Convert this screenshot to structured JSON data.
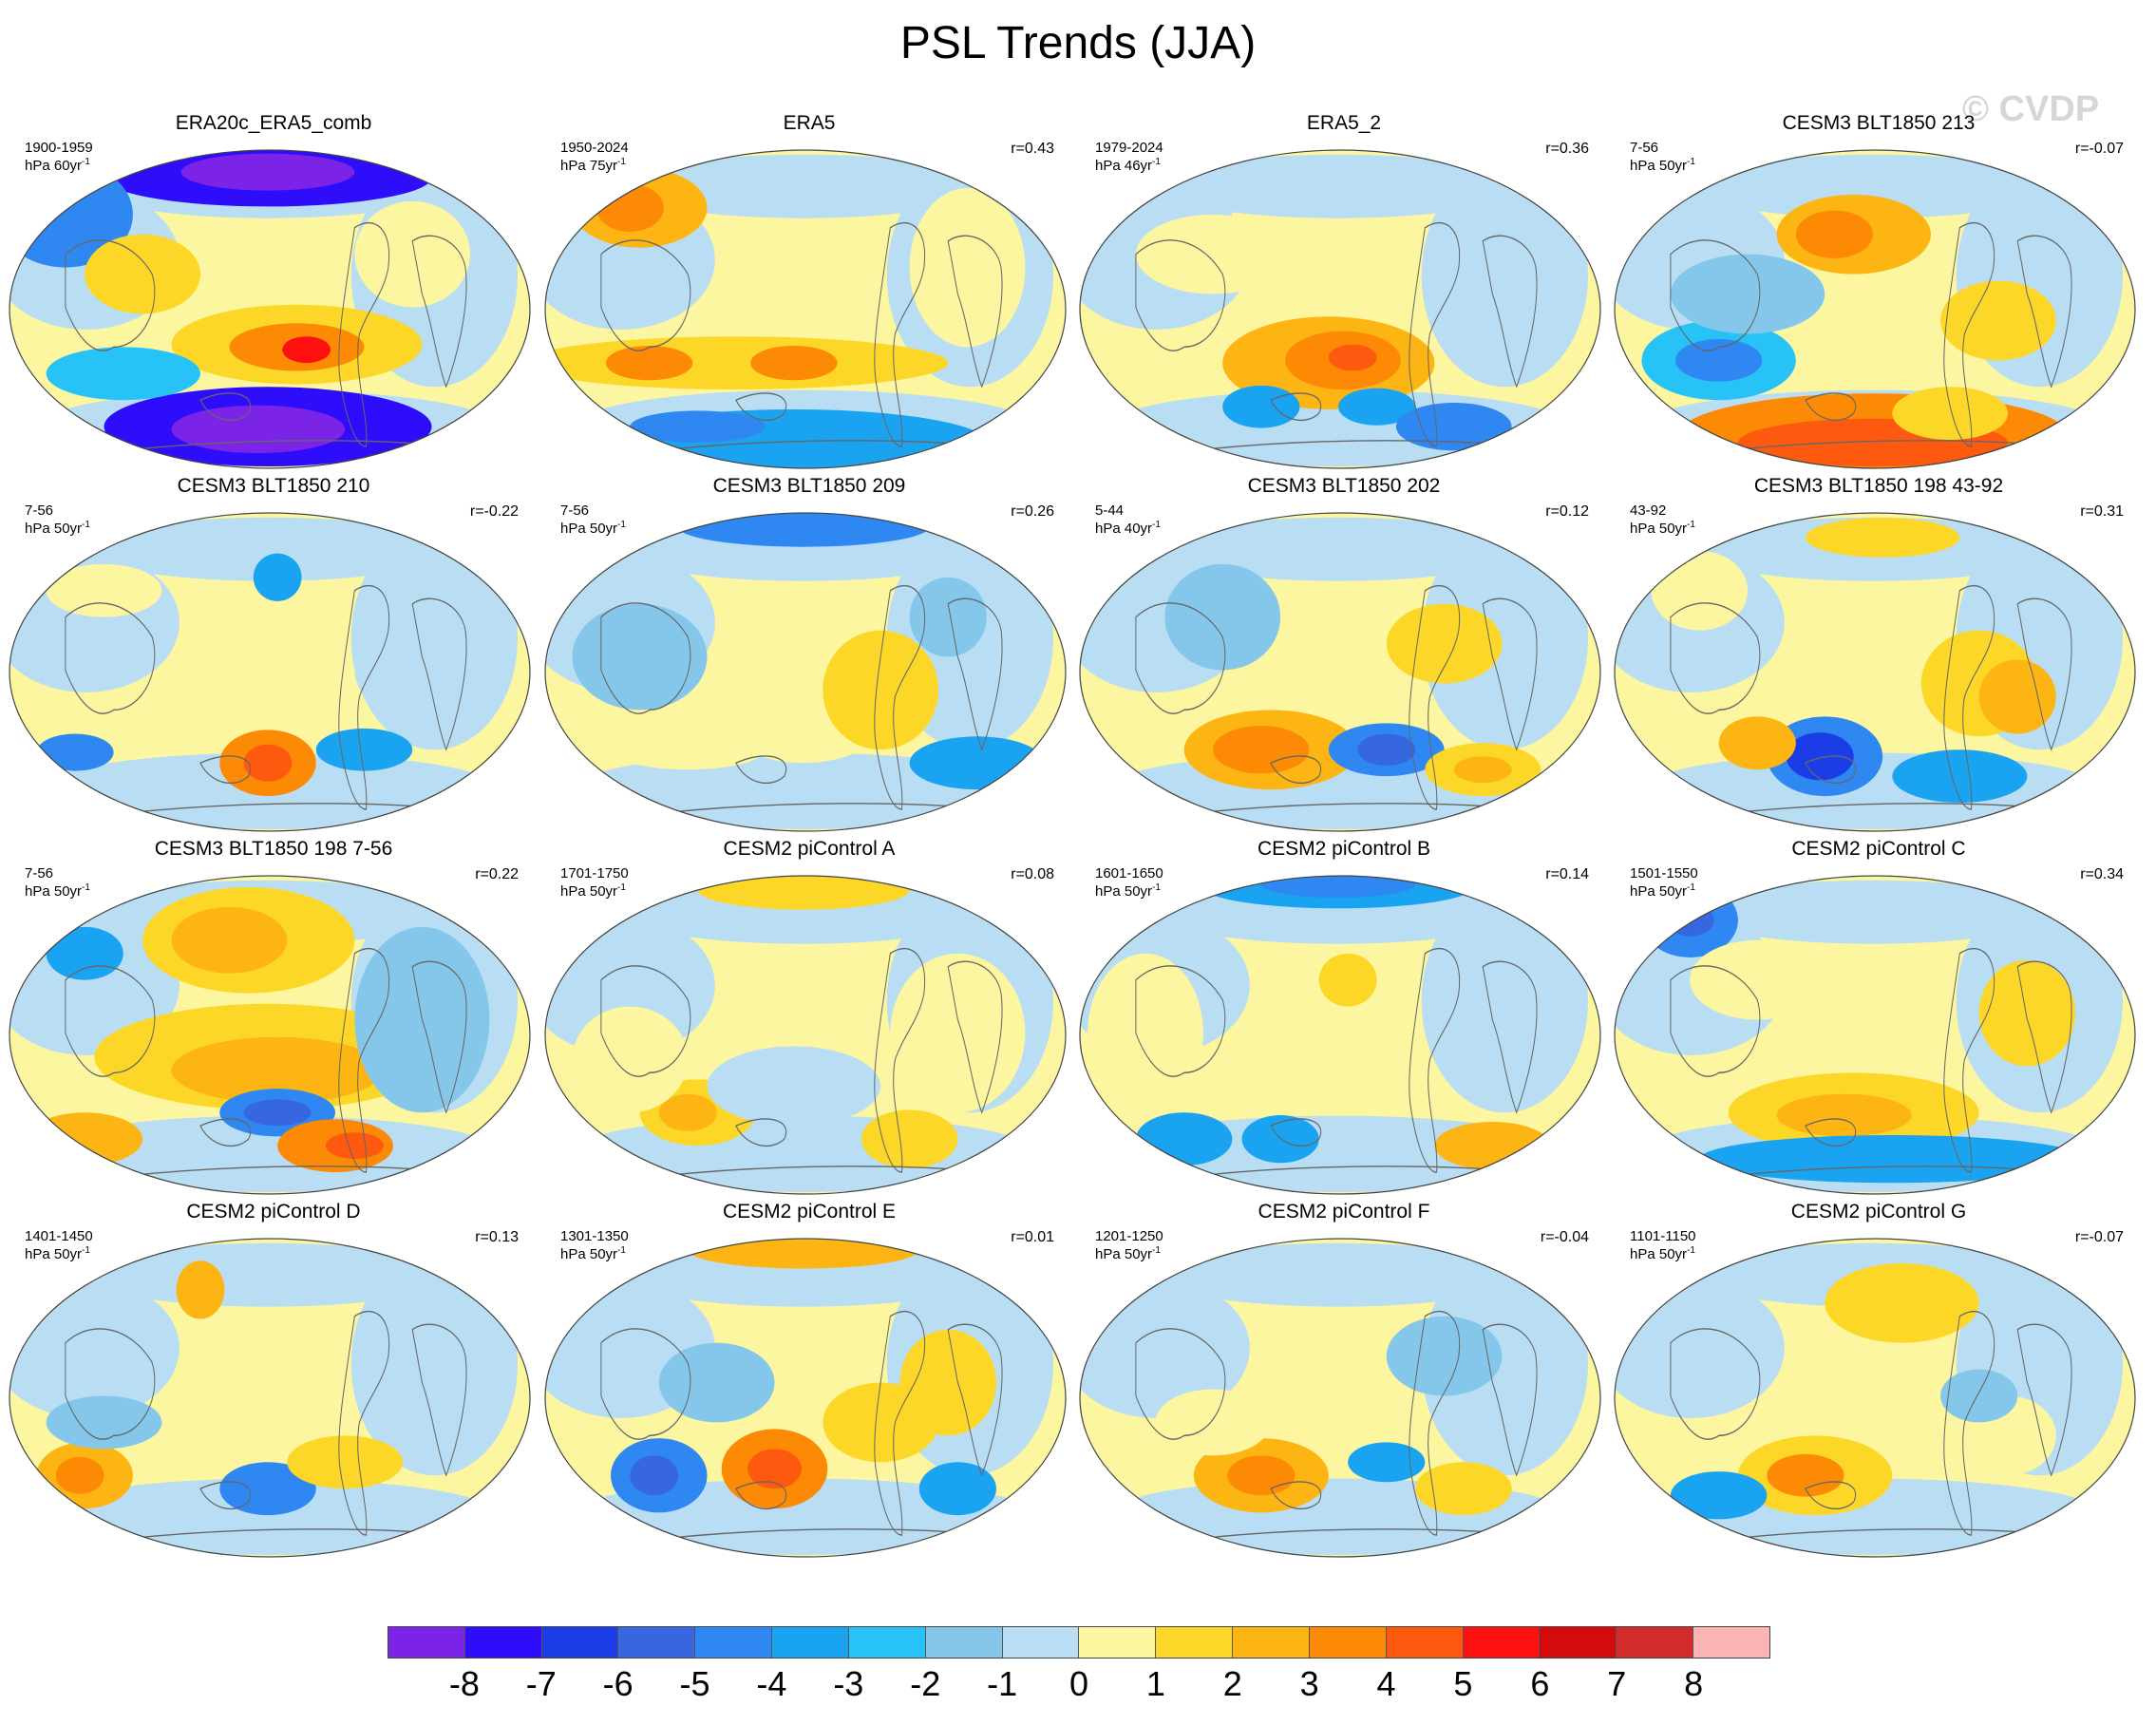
{
  "title": "PSL Trends (JJA)",
  "watermark": "© CVDP",
  "colorbar": {
    "colors": [
      "#7b24e8",
      "#2d0dfa",
      "#1c3de6",
      "#3666e0",
      "#2f88f2",
      "#1aa3f0",
      "#27c2f6",
      "#84c7eb",
      "#b9def3",
      "#fdf6a0",
      "#fdd728",
      "#fdb514",
      "#fd8a04",
      "#fd5a10",
      "#ff1010",
      "#d40b0b",
      "#d22c2c",
      "#fdb4b4"
    ],
    "labels": [
      "-8",
      "-7",
      "-6",
      "-5",
      "-4",
      "-3",
      "-2",
      "-1",
      "0",
      "1",
      "2",
      "3",
      "4",
      "5",
      "6",
      "7",
      "8"
    ]
  },
  "panels": [
    {
      "title": "ERA20c_ERA5_comb",
      "years": "1900-1959",
      "units": "hPa 60yr",
      "units_sup": "-1",
      "corr": ""
    },
    {
      "title": "ERA5",
      "years": "1950-2024",
      "units": "hPa 75yr",
      "units_sup": "-1",
      "corr": "r=0.43"
    },
    {
      "title": "ERA5_2",
      "years": "1979-2024",
      "units": "hPa 46yr",
      "units_sup": "-1",
      "corr": "r=0.36"
    },
    {
      "title": "CESM3 BLT1850 213",
      "years": "7-56",
      "units": "hPa 50yr",
      "units_sup": "-1",
      "corr": "r=-0.07"
    },
    {
      "title": "CESM3 BLT1850 210",
      "years": "7-56",
      "units": "hPa 50yr",
      "units_sup": "-1",
      "corr": "r=-0.22"
    },
    {
      "title": "CESM3 BLT1850 209",
      "years": "7-56",
      "units": "hPa 50yr",
      "units_sup": "-1",
      "corr": "r=0.26"
    },
    {
      "title": "CESM3 BLT1850 202",
      "years": "5-44",
      "units": "hPa 40yr",
      "units_sup": "-1",
      "corr": "r=0.12"
    },
    {
      "title": "CESM3 BLT1850 198 43-92",
      "years": "43-92",
      "units": "hPa 50yr",
      "units_sup": "-1",
      "corr": "r=0.31"
    },
    {
      "title": "CESM3 BLT1850 198 7-56",
      "years": "7-56",
      "units": "hPa 50yr",
      "units_sup": "-1",
      "corr": "r=0.22"
    },
    {
      "title": "CESM2 piControl A",
      "years": "1701-1750",
      "units": "hPa 50yr",
      "units_sup": "-1",
      "corr": "r=0.08"
    },
    {
      "title": "CESM2 piControl B",
      "years": "1601-1650",
      "units": "hPa 50yr",
      "units_sup": "-1",
      "corr": "r=0.14"
    },
    {
      "title": "CESM2 piControl C",
      "years": "1501-1550",
      "units": "hPa 50yr",
      "units_sup": "-1",
      "corr": "r=0.34"
    },
    {
      "title": "CESM2 piControl D",
      "years": "1401-1450",
      "units": "hPa 50yr",
      "units_sup": "-1",
      "corr": "r=0.13"
    },
    {
      "title": "CESM2 piControl E",
      "years": "1301-1350",
      "units": "hPa 50yr",
      "units_sup": "-1",
      "corr": "r=0.01"
    },
    {
      "title": "CESM2 piControl F",
      "years": "1201-1250",
      "units": "hPa 50yr",
      "units_sup": "-1",
      "corr": "r=-0.04"
    },
    {
      "title": "CESM2 piControl G",
      "years": "1101-1150",
      "units": "hPa 50yr",
      "units_sup": "-1",
      "corr": "r=-0.07"
    }
  ]
}
